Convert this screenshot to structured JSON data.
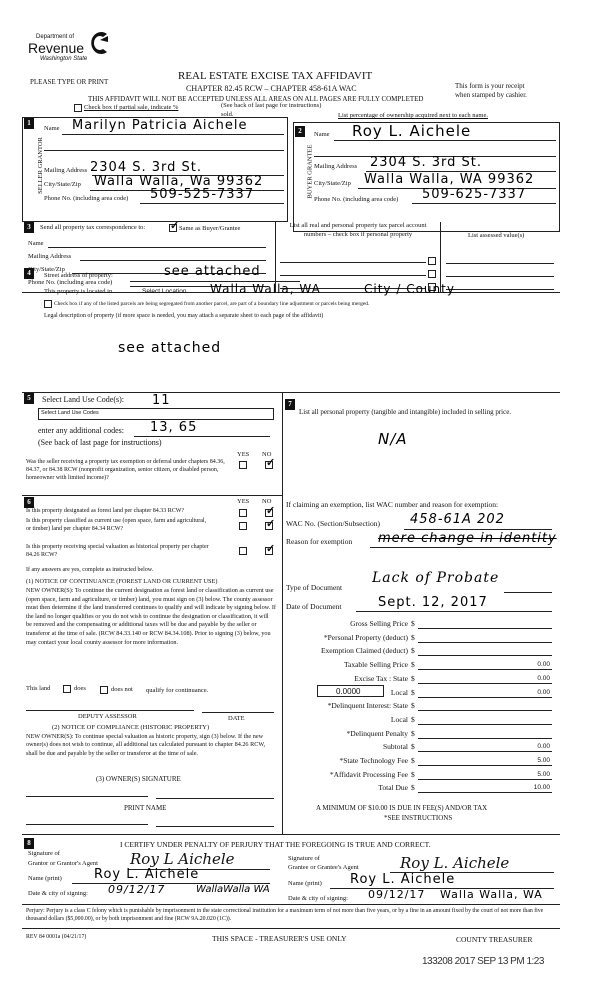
{
  "logo": {
    "dept": "Department of",
    "name": "Revenue",
    "state": "Washington State"
  },
  "header": {
    "please": "PLEASE TYPE OR PRINT",
    "title": "REAL ESTATE EXCISE TAX AFFIDAVIT",
    "chapter": "CHAPTER 82.45 RCW – CHAPTER 458-61A WAC",
    "warning": "THIS AFFIDAVIT WILL NOT BE ACCEPTED UNLESS ALL AREAS ON ALL PAGES ARE FULLY COMPLETED",
    "receipt1": "This form is your receipt",
    "receipt2": "when stamped by cashier.",
    "partial": "Check box if partial sale, indicate %",
    "sold": "sold.",
    "see_back": "(See back of last page for instructions)",
    "percentage": "List percentage of ownership acquired next to each name."
  },
  "seller": {
    "num": "1",
    "side": "SELLER GRANTOR",
    "name_label": "Name",
    "name": "Marilyn Patricia Aichele",
    "mail_label": "Mailing Address",
    "mail": "2304 S. 3rd St.",
    "city_label": "City/State/Zip",
    "city": "Walla Walla, Wa 99362",
    "phone_label": "Phone No. (including area code)",
    "phone": "509-525-7337"
  },
  "buyer": {
    "num": "2",
    "side": "BUYER GRANTEE",
    "name_label": "Name",
    "name": "Roy L. Aichele",
    "mail_label": "Mailing Address",
    "mail": "2304 S. 3rd St.",
    "city_label": "City/State/Zip",
    "city": "Walla Walla, WA 99362",
    "phone_label": "Phone No. (including area code)",
    "phone": "509-625-7337"
  },
  "sec3": {
    "num": "3",
    "send": "Send all property tax correspondence to:",
    "same": "Same as Buyer/Grantee",
    "same_checked": true,
    "name": "Name",
    "mail": "Mailing Address",
    "city": "City/State/Zip",
    "phone": "Phone No. (including area code)",
    "parcel_header": "List all real and personal property tax parcel account numbers – check box if personal property",
    "assessed_header": "List assessed value(s)"
  },
  "sec4": {
    "num": "4",
    "street_label": "Street address of property:",
    "street": "see attached",
    "located": "This property is located in",
    "select_loc": "Select Location",
    "location": "Walla Walla, WA",
    "city_county": "City / County",
    "segregated": "Check box if any of the listed parcels are being segregated from another parcel, are part of a boundary line adjustment or parcels being merged.",
    "legal_label": "Legal description of property (if more space is needed, you may attach a separate sheet to each page of the affidavit)",
    "legal": "see attached"
  },
  "sec5": {
    "num": "5",
    "label": "Select Land Use Code(s):",
    "code": "11",
    "dropdown": "Select Land Use Codes",
    "additional_label": "enter any additional codes:",
    "additional": "13, 65",
    "see_back": "(See back of last page for instructions)",
    "yes": "YES",
    "no": "NO",
    "q": "Was the seller receiving a property tax exemption or deferral under chapters 84.36, 84.37, or 84.38 RCW (nonprofit organization, senior citizen, or disabled person, homeowner with limited income)?",
    "answer": "NO"
  },
  "sec6": {
    "num": "6",
    "yes": "YES",
    "no": "NO",
    "q1": "Is this property designated as forest land per chapter 84.33 RCW?",
    "q2": "Is this property classified as current use (open space, farm and agricultural, or timber) land per chapter 84.34 RCW?",
    "q3": "Is this property receiving special valuation as historical property per chapter 84.26 RCW?",
    "answers": [
      "NO",
      "NO",
      "NO"
    ],
    "if_yes": "If any answers are yes, complete as instructed below.",
    "notice1_title": "(1) NOTICE OF CONTINUANCE (FOREST LAND OR CURRENT USE)",
    "notice1": "NEW OWNER(S): To continue the current designation as forest land or classification as current use (open space, farm and agriculture, or timber) land, you must sign on (3) below. The county assessor must then determine if the land transferred continues to qualify and will indicate by signing below. If the land no longer qualifies or you do not wish to continue the designation or classification, it will be removed and the compensating or additional taxes will be due and payable by the seller or transferor at the time of sale. (RCW 84.33.140 or RCW 84.34.108). Prior to signing (3) below, you may contact your local county assessor for more information.",
    "this_land": "This land",
    "does": "does",
    "does_not": "does not",
    "qualify": "qualify for continuance.",
    "deputy": "DEPUTY ASSESSOR",
    "date": "DATE",
    "notice2_title": "(2) NOTICE OF COMPLIANCE (HISTORIC PROPERTY)",
    "notice2": "NEW OWNER(S): To continue special valuation as historic property, sign (3) below. If the new owner(s) does not wish to continue, all additional tax calculated pursuant to chapter 84.26 RCW, shall be due and payable by the seller or transferor at the time of sale.",
    "owner_sig": "(3) OWNER(S) SIGNATURE",
    "print_name": "PRINT NAME"
  },
  "sec7": {
    "num": "7",
    "label": "List all personal property (tangible and intangible) included in selling price.",
    "value": "N/A",
    "exemption_label": "If claiming an exemption, list WAC number and reason for exemption:",
    "wac_label": "WAC No. (Section/Subsection)",
    "wac": "458-61A 202",
    "reason_label": "Reason for exemption",
    "reason": "mere change in identity",
    "doc_type_label": "Type of Document",
    "doc_type": "Lack of Probate",
    "doc_date_label": "Date of Document",
    "doc_date": "Sept. 12, 2017",
    "rate": "0.0000",
    "fees": [
      {
        "label": "Gross Selling Price",
        "value": ""
      },
      {
        "label": "*Personal Property (deduct)",
        "value": ""
      },
      {
        "label": "Exemption Claimed (deduct)",
        "value": ""
      },
      {
        "label": "Taxable Selling Price",
        "value": "0.00"
      },
      {
        "label": "Excise Tax : State",
        "value": "0.00"
      },
      {
        "label": "Local",
        "value": "0.00"
      },
      {
        "label": "*Delinquent Interest: State",
        "value": ""
      },
      {
        "label": "Local",
        "value": ""
      },
      {
        "label": "*Delinquent Penalty",
        "value": ""
      },
      {
        "label": "Subtotal",
        "value": "0.00"
      },
      {
        "label": "*State Technology Fee",
        "value": "5.00"
      },
      {
        "label": "*Affidavit Processing Fee",
        "value": "5.00"
      },
      {
        "label": "Total Due",
        "value": "10.00"
      }
    ],
    "currency": "$",
    "minimum": "A MINIMUM OF $10.00 IS DUE IN FEE(S) AND/OR TAX",
    "see_instr": "*SEE INSTRUCTIONS"
  },
  "sec8": {
    "num": "8",
    "certify": "I CERTIFY UNDER PENALTY OF PERJURY THAT THE FOREGOING IS TRUE AND CORRECT.",
    "grantor_sig_label1": "Signature of",
    "grantor_sig_label2": "Grantor or Grantor's Agent",
    "grantor_sig": "Roy L Aichele",
    "grantor_name_label": "Name (print)",
    "grantor_name": "Roy L. Aichele",
    "grantor_date_label": "Date & city of signing:",
    "grantor_date": "09/12/17",
    "grantor_city": "WallaWalla WA",
    "grantee_sig_label1": "Signature of",
    "grantee_sig_label2": "Grantee or Grantee's Agent",
    "grantee_sig": "Roy L. Aichele",
    "grantee_name_label": "Name (print)",
    "grantee_name": "Roy L. Aichele",
    "grantee_date_label": "Date & city of signing:",
    "grantee_date": "09/12/17",
    "grantee_city": "Walla Walla, WA"
  },
  "footer": {
    "perjury": "Perjury: Perjury is a class C felony which is punishable by imprisonment in the state correctional institution for a maximum term of not more than five years, or by a fine in an amount fixed by the court of not more than five thousand dollars ($5,000.00), or by both imprisonment and fine (RCW 9A.20.020 (1C)).",
    "rev": "REV 84 0001a (04/21/17)",
    "treasurer_space": "THIS SPACE - TREASURER'S USE ONLY",
    "county": "COUNTY TREASURER",
    "stamp": "133208 2017 SEP 13 PM 1:23"
  }
}
